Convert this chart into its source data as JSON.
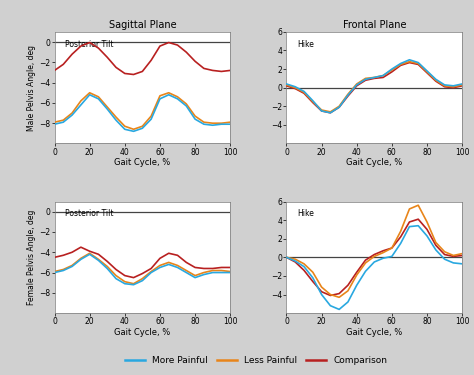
{
  "title_left": "Sagittal Plane",
  "title_right": "Frontal Plane",
  "xlabel": "Gait Cycle, %",
  "ylabel_male": "Male Pelvis Angle, deg",
  "ylabel_female": "Female Pelvis Angle, deg",
  "annotation_sag": "Posterior Tilt",
  "annotation_fron": "Hike",
  "colors": {
    "more_painful": "#29A8E0",
    "less_painful": "#E8851A",
    "comparison": "#B82020"
  },
  "legend_labels": [
    "More Painful",
    "Less Painful",
    "Comparison"
  ],
  "background_color": "#D0D0D0",
  "panel_background": "#FFFFFF",
  "x": [
    0,
    5,
    10,
    15,
    20,
    25,
    30,
    35,
    40,
    45,
    50,
    55,
    60,
    65,
    70,
    75,
    80,
    85,
    90,
    95,
    100
  ],
  "male_sag_more": [
    -8.1,
    -7.9,
    -7.2,
    -6.2,
    -5.2,
    -5.6,
    -6.6,
    -7.7,
    -8.6,
    -8.8,
    -8.5,
    -7.6,
    -5.6,
    -5.2,
    -5.6,
    -6.3,
    -7.6,
    -8.1,
    -8.2,
    -8.1,
    -8.1
  ],
  "male_sag_less": [
    -7.9,
    -7.7,
    -7.0,
    -5.8,
    -5.0,
    -5.4,
    -6.4,
    -7.4,
    -8.3,
    -8.6,
    -8.3,
    -7.3,
    -5.3,
    -5.0,
    -5.4,
    -6.1,
    -7.3,
    -7.9,
    -8.0,
    -8.0,
    -7.9
  ],
  "male_sag_comp": [
    -2.8,
    -2.2,
    -1.2,
    -0.4,
    -0.05,
    -0.6,
    -1.5,
    -2.5,
    -3.1,
    -3.2,
    -2.9,
    -1.8,
    -0.4,
    -0.05,
    -0.3,
    -1.0,
    -1.9,
    -2.6,
    -2.8,
    -2.9,
    -2.8
  ],
  "male_fron_more": [
    0.4,
    0.1,
    -0.4,
    -1.4,
    -2.5,
    -2.7,
    -2.1,
    -0.8,
    0.3,
    0.9,
    1.1,
    1.3,
    2.0,
    2.6,
    3.0,
    2.7,
    1.8,
    0.9,
    0.3,
    0.2,
    0.4
  ],
  "male_fron_less": [
    0.3,
    0.0,
    -0.5,
    -1.5,
    -2.4,
    -2.6,
    -2.0,
    -0.7,
    0.4,
    1.0,
    1.1,
    1.3,
    1.9,
    2.5,
    2.8,
    2.6,
    1.7,
    0.8,
    0.2,
    0.1,
    0.3
  ],
  "male_fron_comp": [
    0.2,
    -0.1,
    -0.6,
    -1.6,
    -2.5,
    -2.7,
    -2.1,
    -0.9,
    0.2,
    0.8,
    1.0,
    1.1,
    1.7,
    2.4,
    2.7,
    2.5,
    1.6,
    0.7,
    0.1,
    0.0,
    0.2
  ],
  "female_sag_more": [
    -6.0,
    -5.8,
    -5.4,
    -4.7,
    -4.2,
    -4.8,
    -5.6,
    -6.6,
    -7.1,
    -7.2,
    -6.8,
    -6.0,
    -5.5,
    -5.2,
    -5.5,
    -6.0,
    -6.5,
    -6.2,
    -6.0,
    -6.0,
    -6.0
  ],
  "female_sag_less": [
    -5.9,
    -5.7,
    -5.3,
    -4.6,
    -4.1,
    -4.7,
    -5.4,
    -6.3,
    -6.9,
    -7.1,
    -6.6,
    -5.9,
    -5.3,
    -5.0,
    -5.3,
    -5.8,
    -6.3,
    -6.0,
    -5.8,
    -5.8,
    -5.9
  ],
  "female_sag_comp": [
    -4.5,
    -4.3,
    -4.0,
    -3.5,
    -3.9,
    -4.2,
    -4.9,
    -5.7,
    -6.3,
    -6.5,
    -6.1,
    -5.6,
    -4.6,
    -4.1,
    -4.3,
    -5.0,
    -5.5,
    -5.6,
    -5.6,
    -5.5,
    -5.5
  ],
  "female_fron_more": [
    0.0,
    -0.4,
    -1.0,
    -2.2,
    -4.0,
    -5.2,
    -5.6,
    -4.8,
    -3.0,
    -1.5,
    -0.5,
    -0.1,
    0.1,
    1.5,
    3.3,
    3.4,
    2.3,
    0.8,
    -0.2,
    -0.6,
    -0.7
  ],
  "female_fron_less": [
    0.0,
    -0.2,
    -0.7,
    -1.6,
    -3.2,
    -4.0,
    -4.3,
    -3.6,
    -1.9,
    -0.6,
    0.1,
    0.5,
    1.0,
    2.8,
    5.2,
    5.6,
    3.8,
    1.6,
    0.6,
    0.2,
    0.4
  ],
  "female_fron_comp": [
    0.0,
    -0.5,
    -1.4,
    -2.6,
    -3.7,
    -4.1,
    -3.9,
    -3.0,
    -1.6,
    -0.3,
    0.3,
    0.7,
    1.0,
    2.2,
    3.8,
    4.1,
    3.0,
    1.3,
    0.3,
    0.1,
    0.2
  ]
}
